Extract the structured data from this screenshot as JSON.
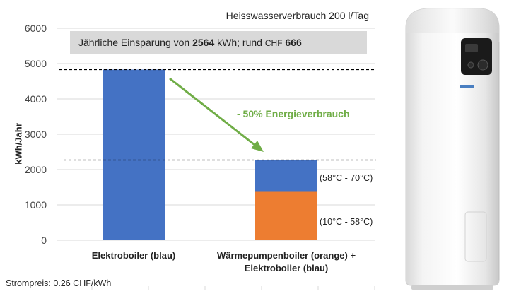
{
  "subtitle": "Heisswasserverbrauch 200 l/Tag",
  "savings": {
    "prefix": "Jährliche Einsparung von ",
    "kwh": "2564",
    "mid": " kWh; rund ",
    "currency": "CHF",
    "chf": "666"
  },
  "callout": "- 50% Energieverbrauch",
  "footnote": "Strompreis: 0.26 CHF/kWh",
  "segment_labels": {
    "upper": "(58°C - 70°C)",
    "lower": "(10°C - 58°C)"
  },
  "colors": {
    "blue": "#4472c4",
    "orange": "#ed7d31",
    "green": "#70ad47",
    "box": "#d9d9d9"
  },
  "chart_data": {
    "type": "bar",
    "stacked": true,
    "categories": [
      "Elektroboiler (blau)",
      "Wärmepumpenboiler (orange) + Elektroboiler (blau)"
    ],
    "category_lines": [
      [
        "Elektroboiler (blau)"
      ],
      [
        "Wärmepumpenboiler (orange) +",
        "Elektroboiler (blau)"
      ]
    ],
    "series": [
      {
        "color": "#ed7d31",
        "values": [
          0,
          1370
        ]
      },
      {
        "color": "#4472c4",
        "values": [
          4830,
          900
        ]
      }
    ],
    "ylabel": "kWh/Jahr",
    "ylim": [
      0,
      6000
    ],
    "yticks": [
      0,
      1000,
      2000,
      3000,
      4000,
      5000,
      6000
    ],
    "grid": true,
    "reference_lines": [
      4830,
      2270
    ]
  }
}
